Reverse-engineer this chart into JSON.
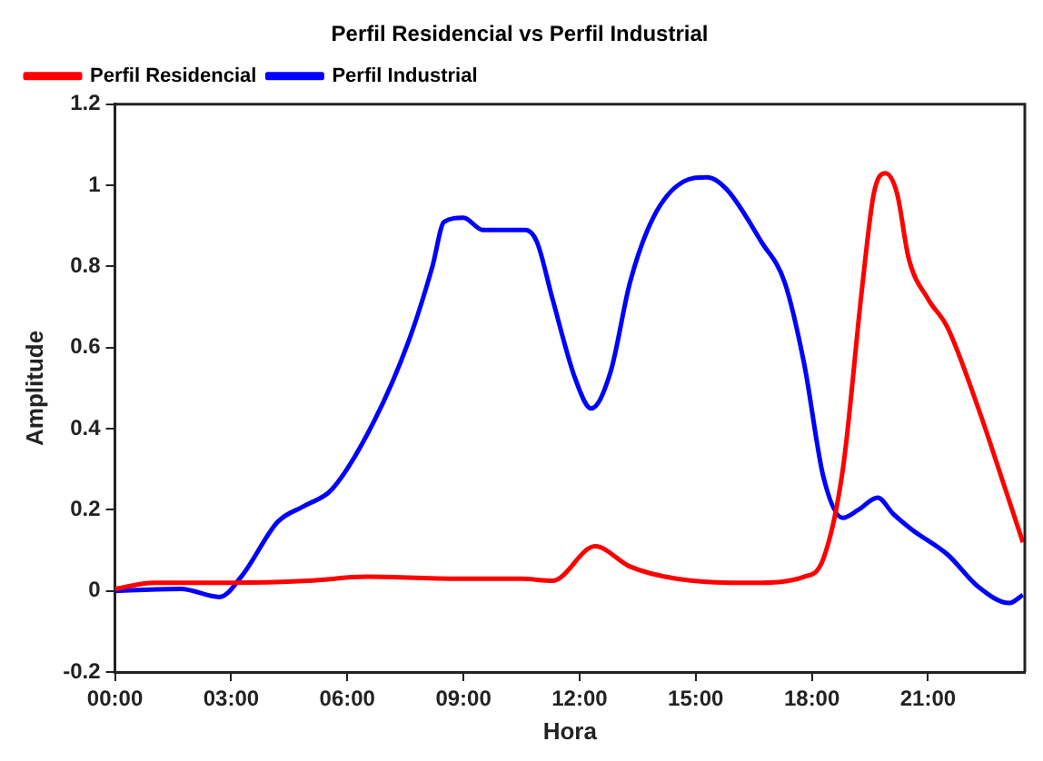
{
  "chart_data": {
    "type": "line",
    "title": "Perfil Residencial vs Perfil Industrial",
    "xlabel": "Hora",
    "ylabel": "Amplitude",
    "xlim": [
      0,
      23.5
    ],
    "xticks": [
      {
        "value": 0,
        "label": "00:00"
      },
      {
        "value": 3,
        "label": "03:00"
      },
      {
        "value": 6,
        "label": "06:00"
      },
      {
        "value": 9,
        "label": "09:00"
      },
      {
        "value": 12,
        "label": "12:00"
      },
      {
        "value": 15,
        "label": "15:00"
      },
      {
        "value": 18,
        "label": "18:00"
      },
      {
        "value": 21,
        "label": "21:00"
      }
    ],
    "ylim": [
      -0.2,
      1.2
    ],
    "yticks": [
      -0.2,
      0,
      0.2,
      0.4,
      0.6,
      0.8,
      1,
      1.2
    ],
    "grid": false,
    "legend": "top left",
    "marker": "none",
    "line_style": "solid",
    "series": [
      {
        "name": "Perfil Residencial",
        "color": "#ff0000",
        "x": [
          0,
          1,
          3,
          5,
          6.5,
          9,
          10.5,
          11.3,
          12.4,
          13.3,
          14.5,
          16.5,
          17.8,
          18.3,
          18.8,
          19.3,
          19.6,
          19.9,
          20.2,
          20.5,
          21,
          21.5,
          22.3,
          23,
          23.45
        ],
        "values": [
          0.005,
          0.02,
          0.02,
          0.025,
          0.035,
          0.03,
          0.03,
          0.025,
          0.11,
          0.06,
          0.03,
          0.02,
          0.035,
          0.08,
          0.3,
          0.75,
          0.98,
          1.03,
          0.98,
          0.82,
          0.72,
          0.65,
          0.45,
          0.25,
          0.12
        ]
      },
      {
        "name": "Perfil Industrial",
        "color": "#0000ff",
        "x": [
          0,
          1.7,
          2.7,
          3.3,
          4.2,
          4.9,
          5.6,
          6.7,
          7.6,
          8.2,
          8.5,
          9,
          9.5,
          10.1,
          10.6,
          10.9,
          11.3,
          11.9,
          12.3,
          12.8,
          13.3,
          13.9,
          14.7,
          15.3,
          15.8,
          16.7,
          17.3,
          17.8,
          18.3,
          18.8,
          19.2,
          19.7,
          20.1,
          20.6,
          21.5,
          22.3,
          23.1,
          23.45
        ],
        "values": [
          0,
          0.005,
          -0.015,
          0.04,
          0.17,
          0.21,
          0.25,
          0.42,
          0.62,
          0.8,
          0.91,
          0.92,
          0.89,
          0.89,
          0.89,
          0.86,
          0.72,
          0.52,
          0.45,
          0.54,
          0.76,
          0.92,
          1.01,
          1.02,
          0.99,
          0.86,
          0.76,
          0.56,
          0.28,
          0.18,
          0.2,
          0.23,
          0.19,
          0.15,
          0.09,
          0.01,
          -0.03,
          -0.01
        ]
      }
    ]
  }
}
